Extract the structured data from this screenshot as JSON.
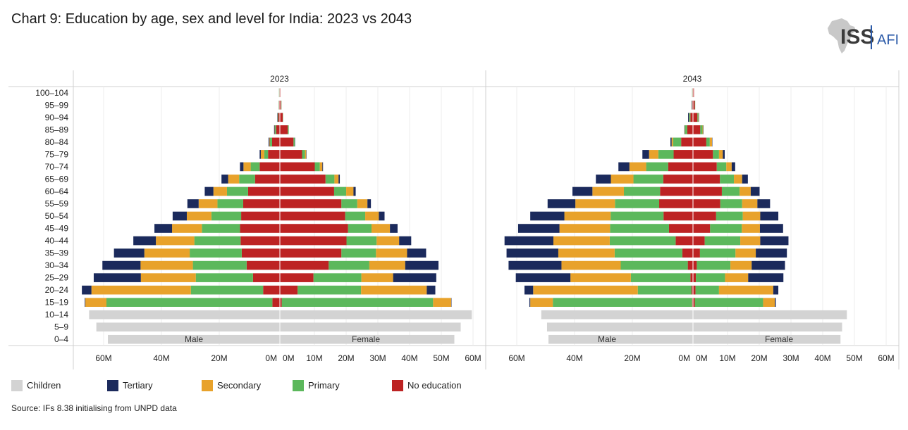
{
  "title": "Chart 9: Education by age, sex and level for India: 2023 vs 2043",
  "logo": {
    "main": "ISS",
    "sub": "AFI"
  },
  "source": "Source: IFs 8.38 initialising from UNPD data",
  "legend": [
    {
      "label": "Children",
      "color": "#d3d3d3"
    },
    {
      "label": "Tertiary",
      "color": "#1b2a5c"
    },
    {
      "label": "Secondary",
      "color": "#e8a22b"
    },
    {
      "label": "Primary",
      "color": "#5cb85c"
    },
    {
      "label": "No education",
      "color": "#bd2323"
    }
  ],
  "chart_data": {
    "type": "population-pyramid",
    "title": "Chart 9: Education by age, sex and level for India: 2023 vs 2043",
    "unit": "M",
    "age_groups": [
      "100–104",
      "95–99",
      "90–94",
      "85–89",
      "80–84",
      "75–79",
      "70–74",
      "65–69",
      "60–64",
      "55–59",
      "50–54",
      "45–49",
      "40–44",
      "35–39",
      "30–34",
      "25–29",
      "20–24",
      "15–19",
      "10–14",
      "5–9",
      "0–4"
    ],
    "level_order_center_out": [
      "No education",
      "Primary",
      "Secondary",
      "Tertiary"
    ],
    "colors": {
      "Children": "#d3d3d3",
      "Tertiary": "#1b2a5c",
      "Secondary": "#e8a22b",
      "Primary": "#5cb85c",
      "No education": "#bd2323"
    },
    "male_label": "Male",
    "female_label": "Female",
    "panels": [
      {
        "name": "2023",
        "male_ticks": [
          "60M",
          "40M",
          "20M",
          "0M"
        ],
        "female_ticks": [
          "0M",
          "10M",
          "20M",
          "30M",
          "40M",
          "50M",
          "60M"
        ],
        "male_xlim": [
          0,
          70
        ],
        "female_xlim": [
          0,
          63
        ],
        "male": {
          "children": [
            0,
            0,
            0,
            0,
            0,
            0,
            0,
            0,
            0,
            0,
            0,
            0,
            0,
            0,
            0,
            0,
            0,
            0,
            66,
            63.5,
            59.5
          ],
          "no_education": [
            0.2,
            0.3,
            0.6,
            1.3,
            2.7,
            4.1,
            7,
            8.6,
            11,
            12.7,
            13.4,
            13.8,
            13.6,
            13.2,
            11.5,
            9.3,
            5.8,
            2.6,
            0,
            0,
            0
          ],
          "primary": [
            0.1,
            0.1,
            0.2,
            0.4,
            0.7,
            1.3,
            3.1,
            5.5,
            7.3,
            8.9,
            10.3,
            13.2,
            16,
            18,
            18.6,
            19.8,
            25,
            57.4,
            0,
            0,
            0
          ],
          "secondary": [
            0,
            0,
            0,
            0.1,
            0.2,
            1.2,
            2.5,
            3.8,
            4.7,
            6.5,
            8.5,
            10.3,
            13.3,
            15.7,
            18.1,
            19,
            34.4,
            7.3,
            0,
            0,
            0
          ],
          "tertiary": [
            0,
            0,
            0.1,
            0.2,
            0.3,
            0.4,
            1.2,
            2.3,
            3,
            3.9,
            4.9,
            6.1,
            7.8,
            10.5,
            13.2,
            16.3,
            3.3,
            0.2,
            0,
            0,
            0
          ]
        },
        "female": {
          "children": [
            0,
            0,
            0,
            0,
            0,
            0,
            0,
            0,
            0,
            0,
            0,
            0,
            0,
            0,
            0,
            0,
            0,
            0,
            60.5,
            57,
            55
          ],
          "no_education": [
            0.2,
            0.4,
            0.9,
            2.5,
            4.3,
            7,
            11,
            14.4,
            17.1,
            19.4,
            20.6,
            21.5,
            21,
            19.4,
            15.4,
            10.6,
            5.6,
            0.6,
            0,
            0,
            0
          ],
          "primary": [
            0,
            0.1,
            0.1,
            0.3,
            0.4,
            0.9,
            1.6,
            2.8,
            3.8,
            5,
            6.3,
            7.4,
            9.5,
            10.9,
            12.8,
            15.1,
            20,
            47.7,
            0,
            0,
            0
          ],
          "secondary": [
            0,
            0,
            0,
            0,
            0,
            0.4,
            0.8,
            1.3,
            2.3,
            3.2,
            4.3,
            5.8,
            7.1,
            9.8,
            11.3,
            10,
            20.7,
            5.7,
            0,
            0,
            0
          ],
          "tertiary": [
            0,
            0,
            0,
            0,
            0.1,
            0.1,
            0.2,
            0.4,
            0.7,
            1.1,
            1.8,
            2.4,
            3.8,
            6,
            10.5,
            13.6,
            2.7,
            0.1,
            0,
            0,
            0
          ]
        }
      },
      {
        "name": "2043",
        "male_ticks": [
          "60M",
          "40M",
          "20M",
          "0M"
        ],
        "female_ticks": [
          "0M",
          "10M",
          "20M",
          "30M",
          "40M",
          "50M",
          "60M"
        ],
        "male_xlim": [
          0,
          70
        ],
        "female_xlim": [
          0,
          63
        ],
        "male": {
          "children": [
            0,
            0,
            0,
            0,
            0,
            0,
            0,
            0,
            0,
            0,
            0,
            0,
            0,
            0,
            0,
            0,
            0,
            0,
            52.5,
            50.5,
            50
          ],
          "no_education": [
            0.2,
            0.3,
            0.9,
            2,
            4.1,
            6.7,
            8.6,
            10.3,
            11.4,
            11.7,
            10.2,
            8.3,
            6,
            3.7,
            1.8,
            0.9,
            0.5,
            0.3,
            0,
            0,
            0
          ],
          "primary": [
            0.1,
            0.1,
            0.4,
            0.8,
            2.8,
            5.3,
            7.6,
            10.3,
            12.5,
            15.3,
            18.3,
            20.4,
            22.8,
            23.4,
            23.2,
            20.6,
            18.6,
            48.2,
            0,
            0,
            0
          ],
          "secondary": [
            0,
            0,
            0.1,
            0.1,
            0.5,
            3.2,
            5.8,
            7.8,
            10.9,
            13.7,
            16,
            17.5,
            19.5,
            19.5,
            20.5,
            20.9,
            36.2,
            7.8,
            0,
            0,
            0
          ],
          "tertiary": [
            0,
            0.1,
            0.3,
            0.1,
            0.4,
            2.3,
            3.8,
            5.2,
            6.9,
            9.6,
            11.8,
            14.3,
            16.9,
            17.9,
            18.3,
            18.9,
            3,
            0.3,
            0,
            0,
            0
          ]
        },
        "female": {
          "children": [
            0,
            0,
            0,
            0,
            0,
            0,
            0,
            0,
            0,
            0,
            0,
            0,
            0,
            0,
            0,
            0,
            0,
            0,
            48.5,
            47,
            46.5
          ],
          "no_education": [
            0.3,
            0.6,
            1.4,
            2.3,
            4.2,
            6.3,
            7.5,
            8.5,
            9.1,
            8.6,
            7.3,
            5.4,
            3.7,
            2.2,
            1.2,
            0.9,
            0.8,
            0.6,
            0,
            0,
            0
          ],
          "primary": [
            0,
            0.1,
            0.3,
            0.7,
            1.1,
            1.9,
            3,
            4.4,
            5.6,
            6.9,
            8.4,
            10,
            11.2,
            11.2,
            10.6,
            9.2,
            7.4,
            21.5,
            0,
            0,
            0
          ],
          "secondary": [
            0,
            0,
            0.1,
            0.2,
            0.7,
            1.2,
            1.7,
            2.6,
            3.5,
            4.8,
            5.5,
            5.7,
            6.3,
            6.4,
            6.7,
            7.3,
            17.1,
            3.7,
            0,
            0,
            0
          ],
          "tertiary": [
            0,
            0,
            0.1,
            0.1,
            0.1,
            0.6,
            1.1,
            1.8,
            2.8,
            4,
            5.7,
            7.3,
            8.9,
            9.8,
            10.5,
            11.1,
            1.6,
            0.3,
            0,
            0,
            0
          ]
        }
      }
    ]
  }
}
